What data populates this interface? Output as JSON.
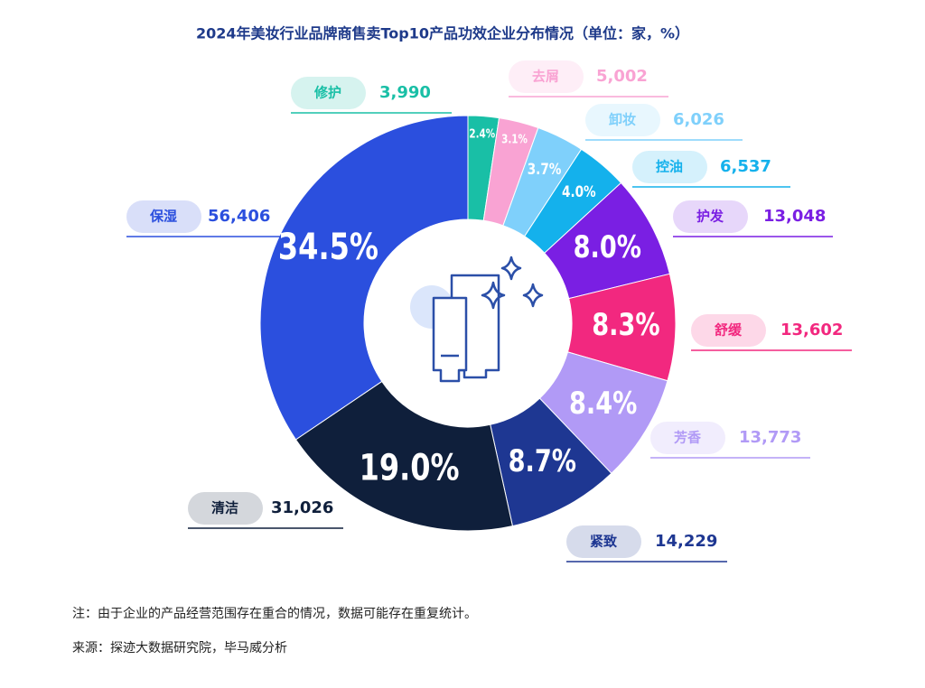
{
  "chart_data": {
    "type": "donut",
    "title": "2024年美妆行业品牌商售卖Top10产品功效企业分布情况（单位：家，%）",
    "categories": [
      "修护",
      "去屑",
      "卸妆",
      "控油",
      "护发",
      "舒缓",
      "芳香",
      "紧致",
      "清洁",
      "保湿"
    ],
    "values": [
      2.4,
      3.1,
      3.7,
      4.0,
      8.0,
      8.3,
      8.4,
      8.7,
      19.0,
      34.5
    ],
    "value_labels": [
      "2.4%",
      "3.1%",
      "3.7%",
      "4.0%",
      "8.0%",
      "8.3%",
      "8.4%",
      "8.7%",
      "19.0%",
      "34.5%"
    ],
    "counts": [
      3990,
      5002,
      6026,
      6537,
      13048,
      13602,
      13773,
      14229,
      31026,
      56406
    ],
    "count_labels": [
      "3,990",
      "5,002",
      "6,026",
      "6,537",
      "13,048",
      "13,602",
      "13,773",
      "14,229",
      "31,026",
      "56,406"
    ],
    "colors": [
      "#19bfa6",
      "#f9a3d3",
      "#7fd0fb",
      "#14b1ec",
      "#7a1fe3",
      "#f2287f",
      "#b19af6",
      "#1e3792",
      "#0f1f3b",
      "#2b4fde"
    ],
    "note": "注：由于企业的产品经营范围存在重合的情况，数据可能存在重复统计。",
    "source": "来源：探迹大数据研究院，毕马威分析"
  }
}
